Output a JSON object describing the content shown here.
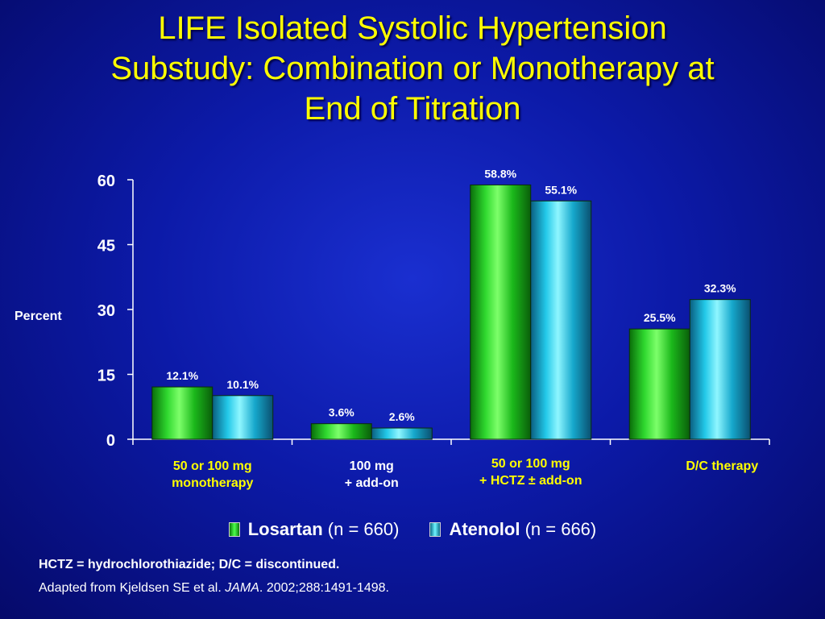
{
  "title_lines": [
    "LIFE Isolated Systolic Hypertension",
    "Substudy: Combination or Monotherapy at",
    "End of Titration"
  ],
  "colors": {
    "losartan": "#22d022",
    "atenolol": "#22d4ee",
    "title": "#ffff00",
    "axis_text": "#ffffff"
  },
  "chart_data": {
    "type": "bar",
    "title": "",
    "ylabel": "Percent",
    "xlabel": "",
    "ylim": [
      0,
      60
    ],
    "yticks": [
      0,
      15,
      30,
      45,
      60
    ],
    "grid": false,
    "legend_position": "bottom",
    "categories": [
      {
        "lines": [
          "50 or 100 mg",
          "monotherapy"
        ],
        "color": "#ffff00"
      },
      {
        "lines": [
          "100 mg",
          "+ add-on"
        ],
        "color": "#ffffff"
      },
      {
        "lines": [
          "50 or 100 mg",
          "+ HCTZ ± add-on"
        ],
        "color": "#ffff00"
      },
      {
        "lines": [
          "D/C  therapy"
        ],
        "color": "#ffff00"
      }
    ],
    "series": [
      {
        "name": "Losartan",
        "values": [
          12.1,
          3.6,
          58.8,
          25.5
        ],
        "labels": [
          "12.1%",
          "3.6%",
          "58.8%",
          "25.5%"
        ]
      },
      {
        "name": "Atenolol",
        "values": [
          10.1,
          2.6,
          55.1,
          32.3
        ],
        "labels": [
          "10.1%",
          "2.6%",
          "55.1%",
          "32.3%"
        ]
      }
    ]
  },
  "legend": [
    {
      "name": "Losartan",
      "detail": "(n = 660)"
    },
    {
      "name": "Atenolol",
      "detail": "(n = 666)"
    }
  ],
  "footnotes": {
    "abbreviations": "HCTZ = hydrochlorothiazide; D/C = discontinued.",
    "source_prefix": "Adapted from Kjeldsen SE et al. ",
    "source_journal": "JAMA",
    "source_suffix": ". 2002;288:1491-1498."
  }
}
